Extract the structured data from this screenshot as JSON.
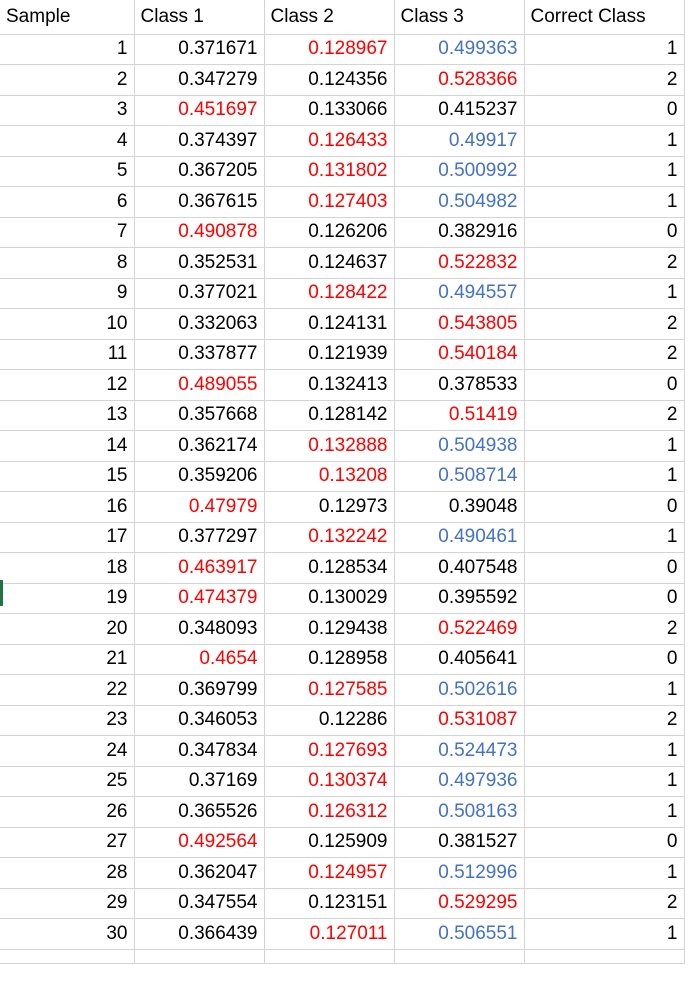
{
  "colors": {
    "red": "#ff0000",
    "blue": "#4472c4",
    "black": "#000000",
    "gridline": "#d4d4d4",
    "row_marker": "#217346"
  },
  "headers": [
    "Sample",
    "Class 1",
    "Class 2",
    "Class 3",
    "Correct Class"
  ],
  "rows": [
    {
      "sample": "1",
      "class1": "0.371671",
      "class2": "0.128967",
      "class3": "0.499363",
      "correct": "1",
      "c1": "black",
      "c2": "red",
      "c3": "blue"
    },
    {
      "sample": "2",
      "class1": "0.347279",
      "class2": "0.124356",
      "class3": "0.528366",
      "correct": "2",
      "c1": "black",
      "c2": "black",
      "c3": "red"
    },
    {
      "sample": "3",
      "class1": "0.451697",
      "class2": "0.133066",
      "class3": "0.415237",
      "correct": "0",
      "c1": "red",
      "c2": "black",
      "c3": "black"
    },
    {
      "sample": "4",
      "class1": "0.374397",
      "class2": "0.126433",
      "class3": "0.49917",
      "correct": "1",
      "c1": "black",
      "c2": "red",
      "c3": "blue"
    },
    {
      "sample": "5",
      "class1": "0.367205",
      "class2": "0.131802",
      "class3": "0.500992",
      "correct": "1",
      "c1": "black",
      "c2": "red",
      "c3": "blue"
    },
    {
      "sample": "6",
      "class1": "0.367615",
      "class2": "0.127403",
      "class3": "0.504982",
      "correct": "1",
      "c1": "black",
      "c2": "red",
      "c3": "blue"
    },
    {
      "sample": "7",
      "class1": "0.490878",
      "class2": "0.126206",
      "class3": "0.382916",
      "correct": "0",
      "c1": "red",
      "c2": "black",
      "c3": "black"
    },
    {
      "sample": "8",
      "class1": "0.352531",
      "class2": "0.124637",
      "class3": "0.522832",
      "correct": "2",
      "c1": "black",
      "c2": "black",
      "c3": "red"
    },
    {
      "sample": "9",
      "class1": "0.377021",
      "class2": "0.128422",
      "class3": "0.494557",
      "correct": "1",
      "c1": "black",
      "c2": "red",
      "c3": "blue"
    },
    {
      "sample": "10",
      "class1": "0.332063",
      "class2": "0.124131",
      "class3": "0.543805",
      "correct": "2",
      "c1": "black",
      "c2": "black",
      "c3": "red"
    },
    {
      "sample": "11",
      "class1": "0.337877",
      "class2": "0.121939",
      "class3": "0.540184",
      "correct": "2",
      "c1": "black",
      "c2": "black",
      "c3": "red"
    },
    {
      "sample": "12",
      "class1": "0.489055",
      "class2": "0.132413",
      "class3": "0.378533",
      "correct": "0",
      "c1": "red",
      "c2": "black",
      "c3": "black"
    },
    {
      "sample": "13",
      "class1": "0.357668",
      "class2": "0.128142",
      "class3": "0.51419",
      "correct": "2",
      "c1": "black",
      "c2": "black",
      "c3": "red"
    },
    {
      "sample": "14",
      "class1": "0.362174",
      "class2": "0.132888",
      "class3": "0.504938",
      "correct": "1",
      "c1": "black",
      "c2": "red",
      "c3": "blue"
    },
    {
      "sample": "15",
      "class1": "0.359206",
      "class2": "0.13208",
      "class3": "0.508714",
      "correct": "1",
      "c1": "black",
      "c2": "red",
      "c3": "blue"
    },
    {
      "sample": "16",
      "class1": "0.47979",
      "class2": "0.12973",
      "class3": "0.39048",
      "correct": "0",
      "c1": "red",
      "c2": "black",
      "c3": "black"
    },
    {
      "sample": "17",
      "class1": "0.377297",
      "class2": "0.132242",
      "class3": "0.490461",
      "correct": "1",
      "c1": "black",
      "c2": "red",
      "c3": "blue"
    },
    {
      "sample": "18",
      "class1": "0.463917",
      "class2": "0.128534",
      "class3": "0.407548",
      "correct": "0",
      "c1": "red",
      "c2": "black",
      "c3": "black"
    },
    {
      "sample": "19",
      "class1": "0.474379",
      "class2": "0.130029",
      "class3": "0.395592",
      "correct": "0",
      "c1": "red",
      "c2": "black",
      "c3": "black"
    },
    {
      "sample": "20",
      "class1": "0.348093",
      "class2": "0.129438",
      "class3": "0.522469",
      "correct": "2",
      "c1": "black",
      "c2": "black",
      "c3": "red"
    },
    {
      "sample": "21",
      "class1": "0.4654",
      "class2": "0.128958",
      "class3": "0.405641",
      "correct": "0",
      "c1": "red",
      "c2": "black",
      "c3": "black"
    },
    {
      "sample": "22",
      "class1": "0.369799",
      "class2": "0.127585",
      "class3": "0.502616",
      "correct": "1",
      "c1": "black",
      "c2": "red",
      "c3": "blue"
    },
    {
      "sample": "23",
      "class1": "0.346053",
      "class2": "0.12286",
      "class3": "0.531087",
      "correct": "2",
      "c1": "black",
      "c2": "black",
      "c3": "red"
    },
    {
      "sample": "24",
      "class1": "0.347834",
      "class2": "0.127693",
      "class3": "0.524473",
      "correct": "1",
      "c1": "black",
      "c2": "red",
      "c3": "blue"
    },
    {
      "sample": "25",
      "class1": "0.37169",
      "class2": "0.130374",
      "class3": "0.497936",
      "correct": "1",
      "c1": "black",
      "c2": "red",
      "c3": "blue"
    },
    {
      "sample": "26",
      "class1": "0.365526",
      "class2": "0.126312",
      "class3": "0.508163",
      "correct": "1",
      "c1": "black",
      "c2": "red",
      "c3": "blue"
    },
    {
      "sample": "27",
      "class1": "0.492564",
      "class2": "0.125909",
      "class3": "0.381527",
      "correct": "0",
      "c1": "red",
      "c2": "black",
      "c3": "black"
    },
    {
      "sample": "28",
      "class1": "0.362047",
      "class2": "0.124957",
      "class3": "0.512996",
      "correct": "1",
      "c1": "black",
      "c2": "red",
      "c3": "blue"
    },
    {
      "sample": "29",
      "class1": "0.347554",
      "class2": "0.123151",
      "class3": "0.529295",
      "correct": "2",
      "c1": "black",
      "c2": "black",
      "c3": "red"
    },
    {
      "sample": "30",
      "class1": "0.366439",
      "class2": "0.127011",
      "class3": "0.506551",
      "correct": "1",
      "c1": "black",
      "c2": "red",
      "c3": "blue"
    }
  ]
}
